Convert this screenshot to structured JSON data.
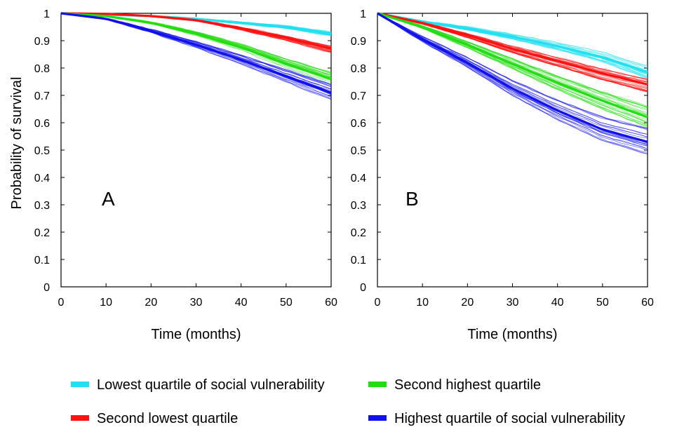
{
  "chart_data": [
    {
      "type": "line",
      "panel_label": "A",
      "xlabel": "Time (months)",
      "ylabel": "Probability of survival",
      "xlim": [
        0,
        60
      ],
      "ylim": [
        0,
        1
      ],
      "xticks": [
        0,
        10,
        20,
        30,
        40,
        50,
        60
      ],
      "yticks": [
        0,
        0.1,
        0.2,
        0.3,
        0.4,
        0.5,
        0.6,
        0.7,
        0.8,
        0.9,
        1
      ],
      "ytick_labels": [
        "0",
        "0.1",
        "0.2",
        "0.3",
        "0.4",
        "0.5",
        "0.6",
        "0.7",
        "0.8",
        "0.9",
        "1"
      ],
      "series": [
        {
          "name": "Lowest quartile of social vulnerability",
          "color": "#22e0f0",
          "x": [
            0,
            10,
            20,
            30,
            40,
            50,
            60
          ],
          "y": [
            1,
            0.995,
            0.99,
            0.98,
            0.965,
            0.95,
            0.925
          ]
        },
        {
          "name": "Second lowest quartile",
          "color": "#ff1111",
          "x": [
            0,
            10,
            20,
            30,
            40,
            50,
            60
          ],
          "y": [
            1,
            0.998,
            0.99,
            0.975,
            0.945,
            0.91,
            0.87
          ]
        },
        {
          "name": "Second highest quartile",
          "color": "#22dd11",
          "x": [
            0,
            10,
            20,
            30,
            40,
            50,
            60
          ],
          "y": [
            1,
            0.99,
            0.965,
            0.925,
            0.875,
            0.815,
            0.76
          ]
        },
        {
          "name": "Highest quartile of social vulnerability",
          "color": "#1111ee",
          "x": [
            0,
            10,
            20,
            30,
            40,
            50,
            60
          ],
          "y": [
            1,
            0.98,
            0.935,
            0.885,
            0.83,
            0.77,
            0.71
          ]
        }
      ]
    },
    {
      "type": "line",
      "panel_label": "B",
      "xlabel": "Time (months)",
      "ylabel": "",
      "xlim": [
        0,
        60
      ],
      "ylim": [
        0,
        1
      ],
      "xticks": [
        0,
        10,
        20,
        30,
        40,
        50,
        60
      ],
      "yticks": [
        0,
        0.1,
        0.2,
        0.3,
        0.4,
        0.5,
        0.6,
        0.7,
        0.8,
        0.9,
        1
      ],
      "ytick_labels": [
        "0",
        "0.1",
        "0.2",
        "0.3",
        "0.4",
        "0.5",
        "0.6",
        "0.7",
        "0.8",
        "0.9",
        "1"
      ],
      "series": [
        {
          "name": "Lowest quartile of social vulnerability",
          "color": "#22e0f0",
          "x": [
            0,
            10,
            20,
            30,
            40,
            50,
            60
          ],
          "y": [
            1,
            0.97,
            0.945,
            0.915,
            0.88,
            0.84,
            0.785
          ]
        },
        {
          "name": "Second lowest quartile",
          "color": "#ff1111",
          "x": [
            0,
            10,
            20,
            30,
            40,
            50,
            60
          ],
          "y": [
            1,
            0.965,
            0.92,
            0.87,
            0.825,
            0.78,
            0.74
          ]
        },
        {
          "name": "Second highest quartile",
          "color": "#22dd11",
          "x": [
            0,
            10,
            20,
            30,
            40,
            50,
            60
          ],
          "y": [
            1,
            0.95,
            0.885,
            0.815,
            0.745,
            0.68,
            0.62
          ]
        },
        {
          "name": "Highest quartile of social vulnerability",
          "color": "#1111ee",
          "x": [
            0,
            10,
            20,
            30,
            40,
            50,
            60
          ],
          "y": [
            1,
            0.905,
            0.82,
            0.725,
            0.645,
            0.575,
            0.53
          ]
        }
      ]
    }
  ],
  "legend": {
    "placement": "bottom",
    "items": [
      {
        "label": "Lowest quartile of social vulnerability",
        "color": "#22e0f0"
      },
      {
        "label": "Second highest quartile",
        "color": "#22dd11"
      },
      {
        "label": "Second lowest quartile",
        "color": "#ff1111"
      },
      {
        "label": "Highest quartile of social vulnerability",
        "color": "#1111ee"
      }
    ]
  }
}
